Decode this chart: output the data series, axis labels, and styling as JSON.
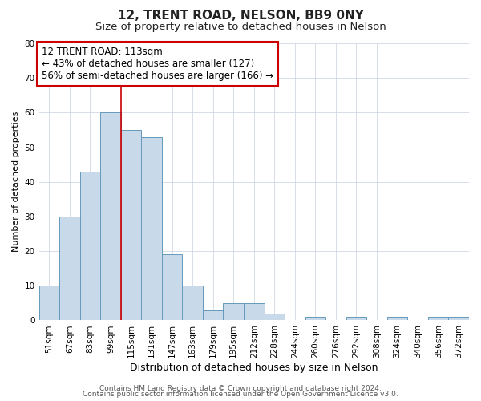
{
  "title": "12, TRENT ROAD, NELSON, BB9 0NY",
  "subtitle": "Size of property relative to detached houses in Nelson",
  "xlabel": "Distribution of detached houses by size in Nelson",
  "ylabel": "Number of detached properties",
  "bar_labels": [
    "51sqm",
    "67sqm",
    "83sqm",
    "99sqm",
    "115sqm",
    "131sqm",
    "147sqm",
    "163sqm",
    "179sqm",
    "195sqm",
    "212sqm",
    "228sqm",
    "244sqm",
    "260sqm",
    "276sqm",
    "292sqm",
    "308sqm",
    "324sqm",
    "340sqm",
    "356sqm",
    "372sqm"
  ],
  "bar_values": [
    10,
    30,
    43,
    60,
    55,
    53,
    19,
    10,
    3,
    5,
    5,
    2,
    0,
    1,
    0,
    1,
    0,
    1,
    0,
    1,
    1
  ],
  "bar_color": "#c8daea",
  "bar_edge_color": "#6699bb",
  "vline_x": 3.5,
  "vline_color": "#cc0000",
  "annotation_text": "12 TRENT ROAD: 113sqm\n← 43% of detached houses are smaller (127)\n56% of semi-detached houses are larger (166) →",
  "annotation_box_color": "#ffffff",
  "annotation_box_edge_color": "#cc0000",
  "ylim": [
    0,
    80
  ],
  "yticks": [
    0,
    10,
    20,
    30,
    40,
    50,
    60,
    70,
    80
  ],
  "background_color": "#ffffff",
  "plot_background": "#ffffff",
  "grid_color": "#d0d8e4",
  "footer_line1": "Contains HM Land Registry data © Crown copyright and database right 2024.",
  "footer_line2": "Contains public sector information licensed under the Open Government Licence v3.0.",
  "title_fontsize": 11,
  "subtitle_fontsize": 9.5,
  "xlabel_fontsize": 9,
  "ylabel_fontsize": 8,
  "tick_fontsize": 7.5,
  "annotation_fontsize": 8.5,
  "footer_fontsize": 6.5
}
